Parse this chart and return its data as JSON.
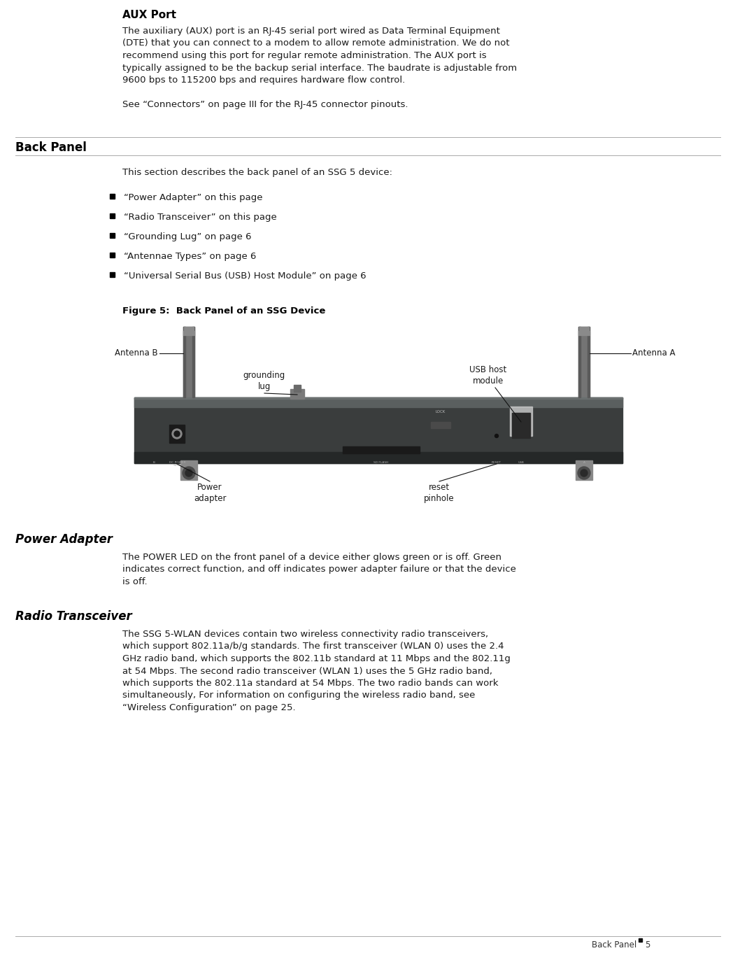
{
  "bg_color": "#ffffff",
  "aux_port_title": "AUX Port",
  "aux_port_body_lines": [
    "The auxiliary (AUX) port is an RJ-45 serial port wired as Data Terminal Equipment",
    "(DTE) that you can connect to a modem to allow remote administration. We do not",
    "recommend using this port for regular remote administration. The AUX port is",
    "typically assigned to be the backup serial interface. The baudrate is adjustable from",
    "9600 bps to 115200 bps and requires hardware flow control."
  ],
  "aux_port_see": "See “Connectors” on page III for the RJ-45 connector pinouts.",
  "back_panel_title": "Back Panel",
  "back_panel_intro": "This section describes the back panel of an SSG 5 device:",
  "bullet_items": [
    "“Power Adapter” on this page",
    "“Radio Transceiver” on this page",
    "“Grounding Lug” on page 6",
    "“Antennae Types” on page 6",
    "“Universal Serial Bus (USB) Host Module” on page 6"
  ],
  "figure_caption": "Figure 5:  Back Panel of an SSG Device",
  "power_adapter_title": "Power Adapter",
  "power_adapter_body_lines": [
    "The POWER LED on the front panel of a device either glows green or is off. Green",
    "indicates correct function, and off indicates power adapter failure or that the device",
    "is off."
  ],
  "radio_transceiver_title": "Radio Transceiver",
  "radio_transceiver_body_lines": [
    "The SSG 5-WLAN devices contain two wireless connectivity radio transceivers,",
    "which support 802.11a/b/g standards. The first transceiver (WLAN 0) uses the 2.4",
    "GHz radio band, which supports the 802.11b standard at 11 Mbps and the 802.11g",
    "at 54 Mbps. The second radio transceiver (WLAN 1) uses the 5 GHz radio band,",
    "which supports the 802.11a standard at 54 Mbps. The two radio bands can work",
    "simultaneously, For information on configuring the wireless radio band, see",
    "“Wireless Configuration” on page 25."
  ],
  "footer_text": "Back Panel",
  "footer_page": "5",
  "device_dark": "#3a3d3d",
  "device_mid": "#4a4f4f",
  "device_light": "#5a5f5f",
  "antenna_dark": "#5a5a5a",
  "antenna_mid": "#747474",
  "antenna_light": "#8a8a8a"
}
